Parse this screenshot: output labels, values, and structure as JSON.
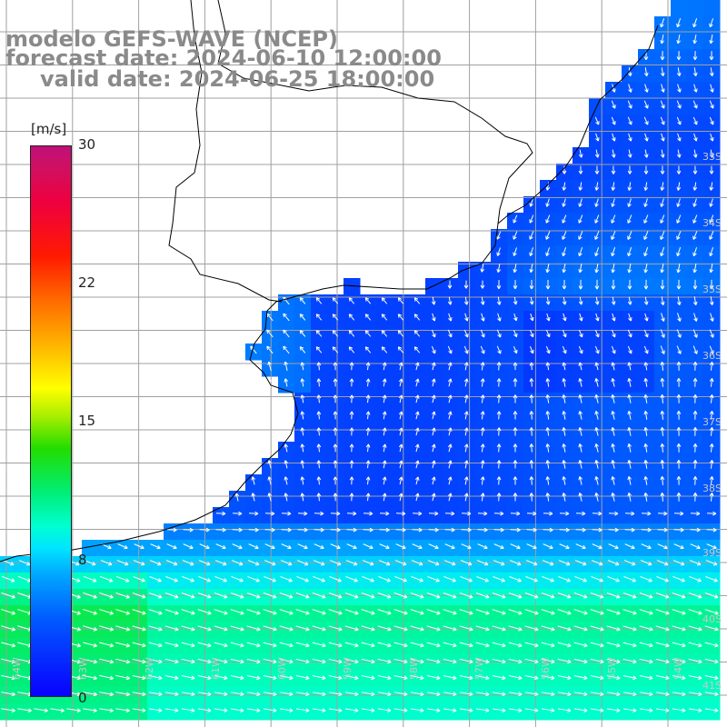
{
  "title": {
    "model": "modelo GEFS-WAVE (NCEP)",
    "forecast": "forecast date: 2024-06-10 12:00:00",
    "valid": "valid date: 2024-06-25 18:00:00"
  },
  "colorbar": {
    "unit": "[m/s]",
    "ticks": [
      "30",
      "22",
      "15",
      "8",
      "0"
    ],
    "range": [
      0,
      30
    ]
  },
  "grid": {
    "lat_labels": [
      "33S",
      "34S",
      "35S",
      "36S",
      "37S",
      "38S",
      "39S",
      "40S",
      "41S"
    ],
    "lon_labels": [
      "64W",
      "63W",
      "62W",
      "61W",
      "60W",
      "59W",
      "58W",
      "57W",
      "56W",
      "55W",
      "54W"
    ]
  },
  "colors": {
    "land": "#ffffff",
    "grid_line": "#a0a0a0",
    "coast": "#000000",
    "vectors": "#ffffff",
    "title_text": "#8a8a8a"
  }
}
